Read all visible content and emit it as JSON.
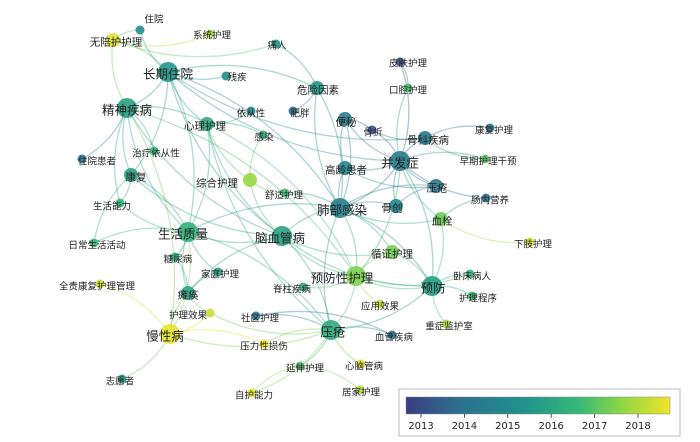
{
  "legend": {
    "ticks": [
      "2013",
      "2014",
      "2015",
      "2016",
      "2017",
      "2018"
    ],
    "colormap": [
      "#3b3d83",
      "#2c6f8e",
      "#20938b",
      "#35b779",
      "#8fd744",
      "#f2e32a"
    ]
  },
  "nodes": [
    {
      "id": "n1",
      "label": "住院",
      "size": "s",
      "year": 2014.9
    },
    {
      "id": "n2",
      "label": "无陪护护理",
      "size": "m",
      "year": 2017.8
    },
    {
      "id": "n3",
      "label": "系统护理",
      "size": "s",
      "year": 2017.2
    },
    {
      "id": "n4",
      "label": "痛人",
      "size": "s",
      "year": 2015.0
    },
    {
      "id": "n5",
      "label": "皮肤护理",
      "size": "s",
      "year": 2013.3
    },
    {
      "id": "n6",
      "label": "长期住院",
      "size": "l",
      "year": 2015.1
    },
    {
      "id": "n7",
      "label": "残疾",
      "size": "s",
      "year": 2014.8
    },
    {
      "id": "n8",
      "label": "危险因素",
      "size": "m",
      "year": 2015.1
    },
    {
      "id": "n9",
      "label": "口腔护理",
      "size": "s",
      "year": 2016.2
    },
    {
      "id": "n10",
      "label": "精神疾病",
      "size": "l",
      "year": 2015.4
    },
    {
      "id": "n11",
      "label": "依从性",
      "size": "s",
      "year": 2014.7
    },
    {
      "id": "n12",
      "label": "肥胖",
      "size": "s",
      "year": 2014.0
    },
    {
      "id": "n13",
      "label": "心理护理",
      "size": "m",
      "year": 2015.6
    },
    {
      "id": "n14",
      "label": "便秘",
      "size": "m",
      "year": 2014.4
    },
    {
      "id": "n15",
      "label": "骨折",
      "size": "s",
      "year": 2013.4
    },
    {
      "id": "n16",
      "label": "骨科疾病",
      "size": "m",
      "year": 2014.3
    },
    {
      "id": "n17",
      "label": "康复护理",
      "size": "s",
      "year": 2014.2
    },
    {
      "id": "n18",
      "label": "治疗依从性",
      "size": "s",
      "year": 2016.0
    },
    {
      "id": "n19",
      "label": "感染",
      "size": "s",
      "year": 2015.9
    },
    {
      "id": "n20",
      "label": "住院患者",
      "size": "s",
      "year": 2014.1
    },
    {
      "id": "n21",
      "label": "高龄患者",
      "size": "m",
      "year": 2014.6
    },
    {
      "id": "n22",
      "label": "并发症",
      "size": "l",
      "year": 2014.4
    },
    {
      "id": "n23",
      "label": "早期护理干预",
      "size": "s",
      "year": 2016.4
    },
    {
      "id": "n24",
      "label": "康复",
      "size": "m",
      "year": 2015.4
    },
    {
      "id": "n25",
      "label": "综合护理",
      "size": "m",
      "year": 2017.1
    },
    {
      "id": "n26",
      "label": "舒适护理",
      "size": "s",
      "year": 2016.1
    },
    {
      "id": "n27",
      "label": "压疮",
      "size": "m",
      "year": 2014.2
    },
    {
      "id": "n28",
      "label": "肠内营养",
      "size": "s",
      "year": 2014.0
    },
    {
      "id": "n29",
      "label": "生活能力",
      "size": "s",
      "year": 2016.0
    },
    {
      "id": "n30",
      "label": "肺部感染",
      "size": "l",
      "year": 2014.5
    },
    {
      "id": "n31",
      "label": "骨创",
      "size": "m",
      "year": 2014.6
    },
    {
      "id": "n32",
      "label": "血栓",
      "size": "m",
      "year": 2016.6
    },
    {
      "id": "n33",
      "label": "生活质量",
      "size": "l",
      "year": 2015.8
    },
    {
      "id": "n34",
      "label": "脑血管病",
      "size": "l",
      "year": 2015.4
    },
    {
      "id": "n35",
      "label": "下肢护理",
      "size": "s",
      "year": 2017.7
    },
    {
      "id": "n36",
      "label": "日常生活活动",
      "size": "s",
      "year": 2016.0
    },
    {
      "id": "n37",
      "label": "循证护理",
      "size": "m",
      "year": 2016.7
    },
    {
      "id": "n38",
      "label": "糖尿病",
      "size": "s",
      "year": 2015.6
    },
    {
      "id": "n39",
      "label": "家庭护理",
      "size": "s",
      "year": 2015.3
    },
    {
      "id": "n40",
      "label": "预防性护理",
      "size": "l",
      "year": 2016.8
    },
    {
      "id": "n41",
      "label": "卧床病人",
      "size": "s",
      "year": 2015.9
    },
    {
      "id": "n42",
      "label": "全责康复护理管理",
      "size": "s",
      "year": 2017.6
    },
    {
      "id": "n43",
      "label": "预防",
      "size": "l",
      "year": 2015.3
    },
    {
      "id": "n44",
      "label": "脊柱疾病",
      "size": "s",
      "year": 2015.7
    },
    {
      "id": "n45",
      "label": "瘫痪",
      "size": "m",
      "year": 2015.5
    },
    {
      "id": "n46",
      "label": "护理程序",
      "size": "s",
      "year": 2016.0
    },
    {
      "id": "n47",
      "label": "应用效果",
      "size": "s",
      "year": 2017.5
    },
    {
      "id": "n48",
      "label": "护理效果",
      "size": "s",
      "year": 2017.6
    },
    {
      "id": "n49",
      "label": "社区护理",
      "size": "s",
      "year": 2014.2
    },
    {
      "id": "n50",
      "label": "重症监护室",
      "size": "s",
      "year": 2017.2
    },
    {
      "id": "n51",
      "label": "压疮",
      "size": "l",
      "year": 2015.6
    },
    {
      "id": "n52",
      "label": "慢性病",
      "size": "l",
      "year": 2017.9
    },
    {
      "id": "n53",
      "label": "血管疾病",
      "size": "s",
      "year": 2014.0
    },
    {
      "id": "n54",
      "label": "压力性损伤",
      "size": "s",
      "year": 2018.0
    },
    {
      "id": "n55",
      "label": "延伸护理",
      "size": "s",
      "year": 2016.3
    },
    {
      "id": "n56",
      "label": "心脑管病",
      "size": "s",
      "year": 2017.8
    },
    {
      "id": "n57",
      "label": "志愿者",
      "size": "s",
      "year": 2015.1
    },
    {
      "id": "n58",
      "label": "居家护理",
      "size": "s",
      "year": 2017.3
    },
    {
      "id": "n59",
      "label": "自护能力",
      "size": "s",
      "year": 2017.9
    }
  ],
  "links": [
    [
      "n6",
      "n10"
    ],
    [
      "n6",
      "n13"
    ],
    [
      "n6",
      "n24"
    ],
    [
      "n6",
      "n2"
    ],
    [
      "n6",
      "n1"
    ],
    [
      "n6",
      "n7"
    ],
    [
      "n6",
      "n33"
    ],
    [
      "n6",
      "n22"
    ],
    [
      "n6",
      "n8"
    ],
    [
      "n6",
      "n16"
    ],
    [
      "n10",
      "n13"
    ],
    [
      "n10",
      "n24"
    ],
    [
      "n10",
      "n20"
    ],
    [
      "n10",
      "n33"
    ],
    [
      "n10",
      "n52"
    ],
    [
      "n10",
      "n34"
    ],
    [
      "n10",
      "n2"
    ],
    [
      "n10",
      "n29"
    ],
    [
      "n10",
      "n18"
    ],
    [
      "n13",
      "n25"
    ],
    [
      "n13",
      "n19"
    ],
    [
      "n13",
      "n11"
    ],
    [
      "n13",
      "n33"
    ],
    [
      "n13",
      "n34"
    ],
    [
      "n13",
      "n40"
    ],
    [
      "n30",
      "n22"
    ],
    [
      "n30",
      "n31"
    ],
    [
      "n30",
      "n34"
    ],
    [
      "n30",
      "n21"
    ],
    [
      "n30",
      "n14"
    ],
    [
      "n30",
      "n27"
    ],
    [
      "n30",
      "n33"
    ],
    [
      "n30",
      "n40"
    ],
    [
      "n30",
      "n51"
    ],
    [
      "n30",
      "n43"
    ],
    [
      "n30",
      "n32"
    ],
    [
      "n30",
      "n37"
    ],
    [
      "n30",
      "n26"
    ],
    [
      "n30",
      "n8"
    ],
    [
      "n22",
      "n27"
    ],
    [
      "n22",
      "n16"
    ],
    [
      "n22",
      "n15"
    ],
    [
      "n22",
      "n14"
    ],
    [
      "n22",
      "n31"
    ],
    [
      "n22",
      "n43"
    ],
    [
      "n22",
      "n32"
    ],
    [
      "n22",
      "n23"
    ],
    [
      "n22",
      "n28"
    ],
    [
      "n22",
      "n9"
    ],
    [
      "n22",
      "n5"
    ],
    [
      "n34",
      "n33"
    ],
    [
      "n34",
      "n40"
    ],
    [
      "n34",
      "n51"
    ],
    [
      "n34",
      "n45"
    ],
    [
      "n34",
      "n25"
    ],
    [
      "n34",
      "n37"
    ],
    [
      "n34",
      "n24"
    ],
    [
      "n33",
      "n45"
    ],
    [
      "n33",
      "n38"
    ],
    [
      "n33",
      "n36"
    ],
    [
      "n33",
      "n29"
    ],
    [
      "n33",
      "n24"
    ],
    [
      "n33",
      "n52"
    ],
    [
      "n33",
      "n39"
    ],
    [
      "n40",
      "n51"
    ],
    [
      "n40",
      "n43"
    ],
    [
      "n40",
      "n37"
    ],
    [
      "n40",
      "n47"
    ],
    [
      "n40",
      "n44"
    ],
    [
      "n40",
      "n41"
    ],
    [
      "n51",
      "n52"
    ],
    [
      "n51",
      "n54"
    ],
    [
      "n51",
      "n55"
    ],
    [
      "n51",
      "n56"
    ],
    [
      "n51",
      "n53"
    ],
    [
      "n51",
      "n49"
    ],
    [
      "n51",
      "n48"
    ],
    [
      "n51",
      "n43"
    ],
    [
      "n51",
      "n59"
    ],
    [
      "n43",
      "n32"
    ],
    [
      "n43",
      "n46"
    ],
    [
      "n43",
      "n50"
    ],
    [
      "n43",
      "n41"
    ],
    [
      "n43",
      "n37"
    ],
    [
      "n52",
      "n57"
    ],
    [
      "n52",
      "n42"
    ],
    [
      "n52",
      "n45"
    ],
    [
      "n52",
      "n48"
    ],
    [
      "n52",
      "n54"
    ],
    [
      "n2",
      "n3"
    ],
    [
      "n2",
      "n1"
    ],
    [
      "n2",
      "n4"
    ],
    [
      "n8",
      "n12"
    ],
    [
      "n8",
      "n4"
    ],
    [
      "n16",
      "n15"
    ],
    [
      "n16",
      "n23"
    ],
    [
      "n16",
      "n17"
    ],
    [
      "n32",
      "n35"
    ],
    [
      "n32",
      "n28"
    ],
    [
      "n14",
      "n21"
    ],
    [
      "n14",
      "n15"
    ],
    [
      "n27",
      "n31"
    ],
    [
      "n27",
      "n21"
    ],
    [
      "n25",
      "n26"
    ],
    [
      "n25",
      "n19"
    ],
    [
      "n45",
      "n38"
    ],
    [
      "n45",
      "n39"
    ],
    [
      "n45",
      "n48"
    ],
    [
      "n24",
      "n29"
    ],
    [
      "n24",
      "n36"
    ],
    [
      "n55",
      "n58"
    ],
    [
      "n55",
      "n59"
    ],
    [
      "n49",
      "n53"
    ],
    [
      "n6",
      "n34"
    ],
    [
      "n10",
      "n40"
    ],
    [
      "n13",
      "n51"
    ],
    [
      "n22",
      "n40"
    ],
    [
      "n34",
      "n43"
    ],
    [
      "n33",
      "n51"
    ],
    [
      "n21",
      "n22"
    ],
    [
      "n8",
      "n30"
    ],
    [
      "n9",
      "n5"
    ],
    [
      "n6",
      "n30"
    ]
  ]
}
